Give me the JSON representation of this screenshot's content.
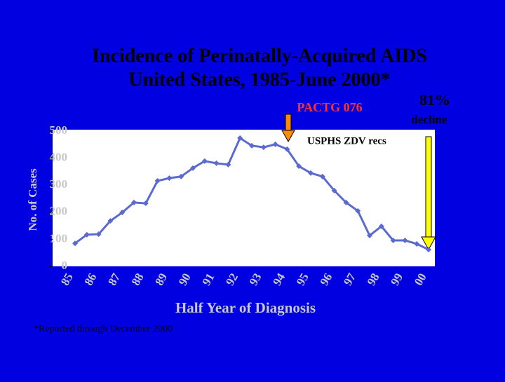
{
  "chart_data": {
    "type": "line",
    "title": [
      "Incidence of Perinatally-Acquired AIDS",
      "United States, 1985-June 2000*"
    ],
    "x_label": "Half Year of Diagnosis",
    "y_label": "No. of Cases",
    "categories": [
      "85",
      null,
      "86",
      null,
      "87",
      null,
      "88",
      null,
      "89",
      null,
      "90",
      null,
      "91",
      null,
      "92",
      null,
      "93",
      null,
      "94",
      null,
      "95",
      null,
      "96",
      null,
      "97",
      null,
      "98",
      null,
      "99",
      null,
      "00"
    ],
    "values": [
      85,
      117,
      119,
      168,
      199,
      236,
      233,
      316,
      326,
      332,
      363,
      389,
      381,
      376,
      474,
      446,
      440,
      451,
      433,
      370,
      345,
      332,
      280,
      236,
      205,
      114,
      148,
      96,
      96,
      83,
      62
    ],
    "color": "#5a6ad0",
    "ylim": [
      0,
      500
    ],
    "yticks": [
      0,
      100,
      200,
      300,
      400,
      500
    ],
    "annotations": [
      "PACTG 076",
      "USPHS ZDV recs",
      "81%",
      "decline"
    ],
    "footnote": "*Reported through December 2000"
  }
}
